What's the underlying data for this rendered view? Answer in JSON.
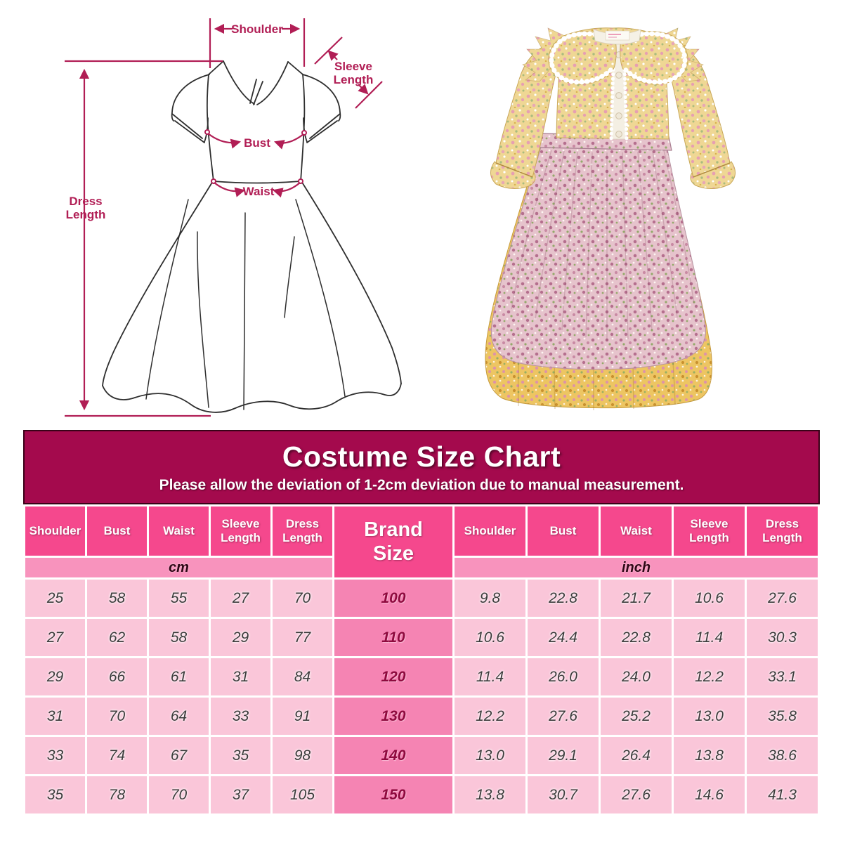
{
  "diagram": {
    "annotation_color": "#B11E55",
    "outline_color": "#2E2E2E",
    "labels": {
      "shoulder": "Shoulder",
      "sleeve_length": [
        "Sleeve",
        "Length"
      ],
      "bust": "Bust",
      "waist": "Waist",
      "dress_length": [
        "Dress",
        "Length"
      ]
    }
  },
  "photo": {
    "colors": {
      "bodice_yellow": "#EFD794",
      "skirt_yellow": "#EDC562",
      "apron_pink": "#E6C3CC",
      "floral_pink": "#B56F8E",
      "floral_green": "#94AA6B",
      "lace_white": "#FFFFFF"
    }
  },
  "table": {
    "title": "Costume Size Chart",
    "subtitle": "Please allow the deviation of 1-2cm deviation due to manual measurement.",
    "columns": [
      "Shoulder",
      "Bust",
      "Waist",
      "Sleeve Length",
      "Dress Length"
    ],
    "brand_size_label": "Brand Size",
    "units": {
      "left": "cm",
      "right": "inch"
    },
    "colors": {
      "title_band": "#A40A4D",
      "title_band_border": "#3A0218",
      "header_cell": "#F5488D",
      "unit_row": "#F893BD",
      "data_cell": "#FAC6D9",
      "brand_cell": "#F584B3",
      "brand_text": "#8E0A3E",
      "header_text": "#FFFFFF",
      "data_text": "#3B3B3B",
      "unit_text": "#2F0716",
      "grid": "#FFFFFF"
    }
  },
  "chart_data": {
    "type": "table",
    "title": "Costume Size Chart",
    "subtitle": "Please allow the deviation of 1-2cm deviation due to manual measurement.",
    "column_groups": [
      "cm",
      "inch"
    ],
    "columns": [
      "Shoulder",
      "Bust",
      "Waist",
      "Sleeve Length",
      "Dress Length"
    ],
    "rows": [
      {
        "brand_size": "100",
        "cm": [
          25,
          58,
          55,
          27,
          70
        ],
        "inch": [
          9.8,
          22.8,
          21.7,
          10.6,
          27.6
        ]
      },
      {
        "brand_size": "110",
        "cm": [
          27,
          62,
          58,
          29,
          77
        ],
        "inch": [
          10.6,
          24.4,
          22.8,
          11.4,
          30.3
        ]
      },
      {
        "brand_size": "120",
        "cm": [
          29,
          66,
          61,
          31,
          84
        ],
        "inch": [
          11.4,
          26.0,
          24.0,
          12.2,
          33.1
        ]
      },
      {
        "brand_size": "130",
        "cm": [
          31,
          70,
          64,
          33,
          91
        ],
        "inch": [
          12.2,
          27.6,
          25.2,
          13.0,
          35.8
        ]
      },
      {
        "brand_size": "140",
        "cm": [
          33,
          74,
          67,
          35,
          98
        ],
        "inch": [
          13.0,
          29.1,
          26.4,
          13.8,
          38.6
        ]
      },
      {
        "brand_size": "150",
        "cm": [
          35,
          78,
          70,
          37,
          105
        ],
        "inch": [
          13.8,
          30.7,
          27.6,
          14.6,
          41.3
        ]
      }
    ]
  }
}
